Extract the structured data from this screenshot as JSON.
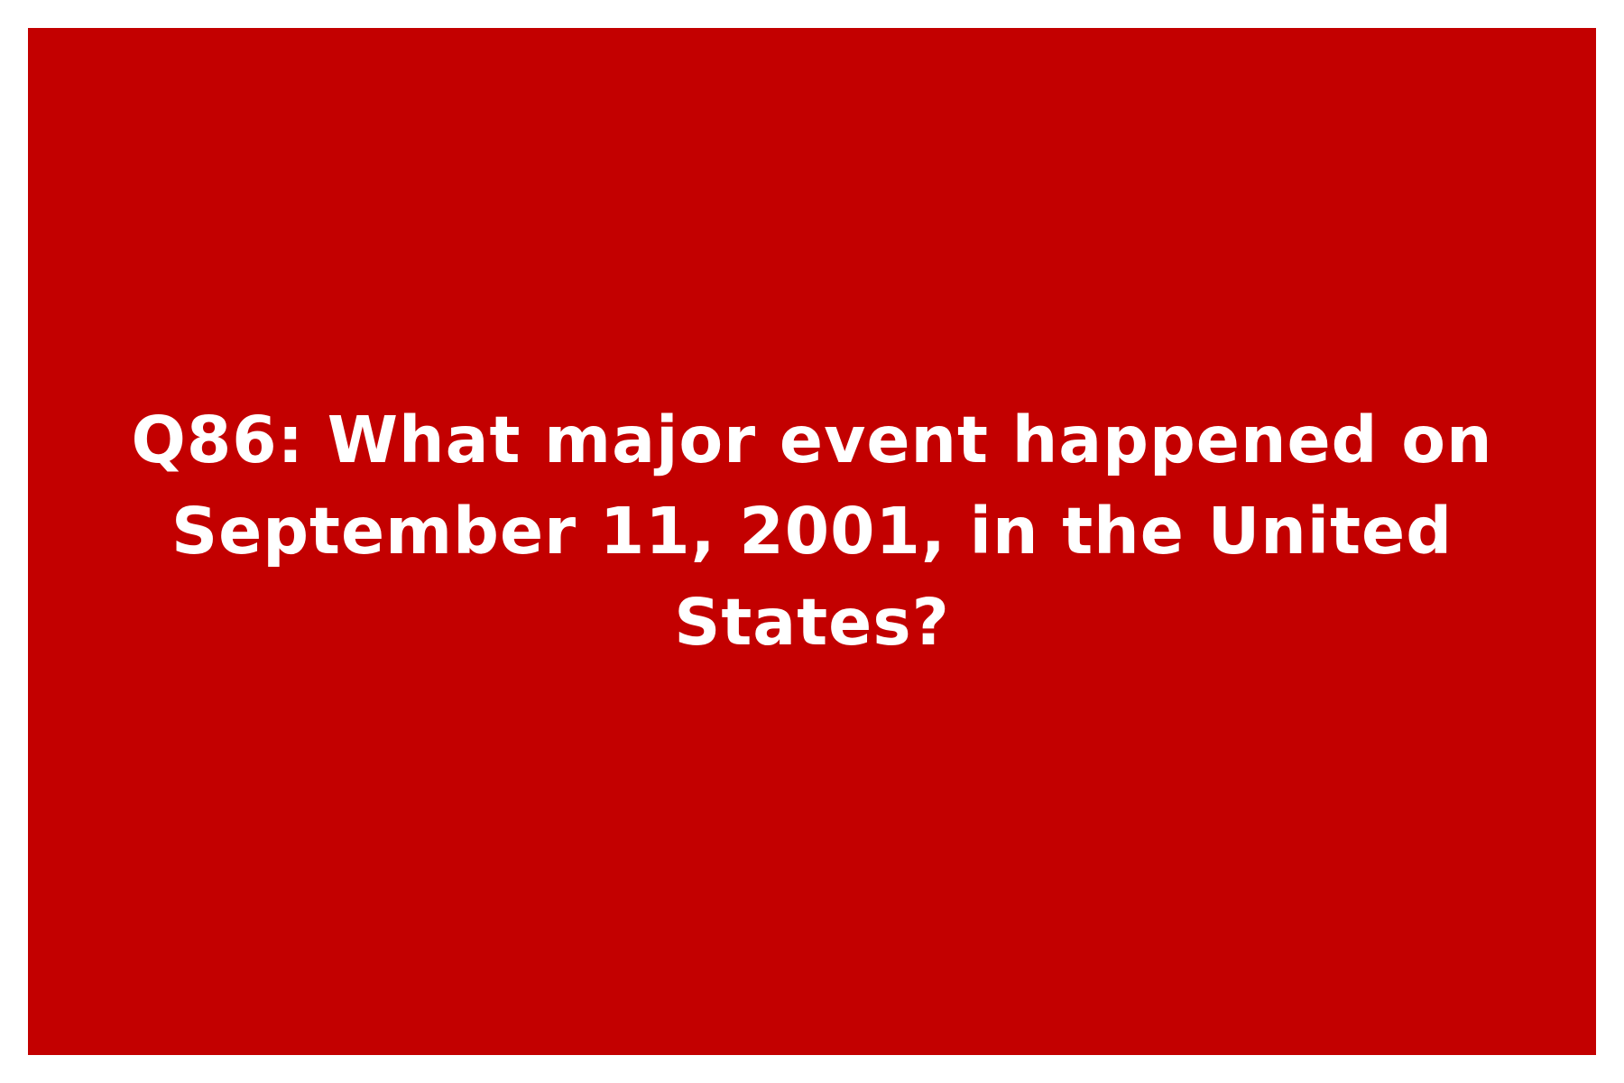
{
  "card": {
    "background_color": "#c30000",
    "text_color": "#ffffff",
    "question": "Q86: What major event happened on September 11, 2001, in the United States?"
  }
}
